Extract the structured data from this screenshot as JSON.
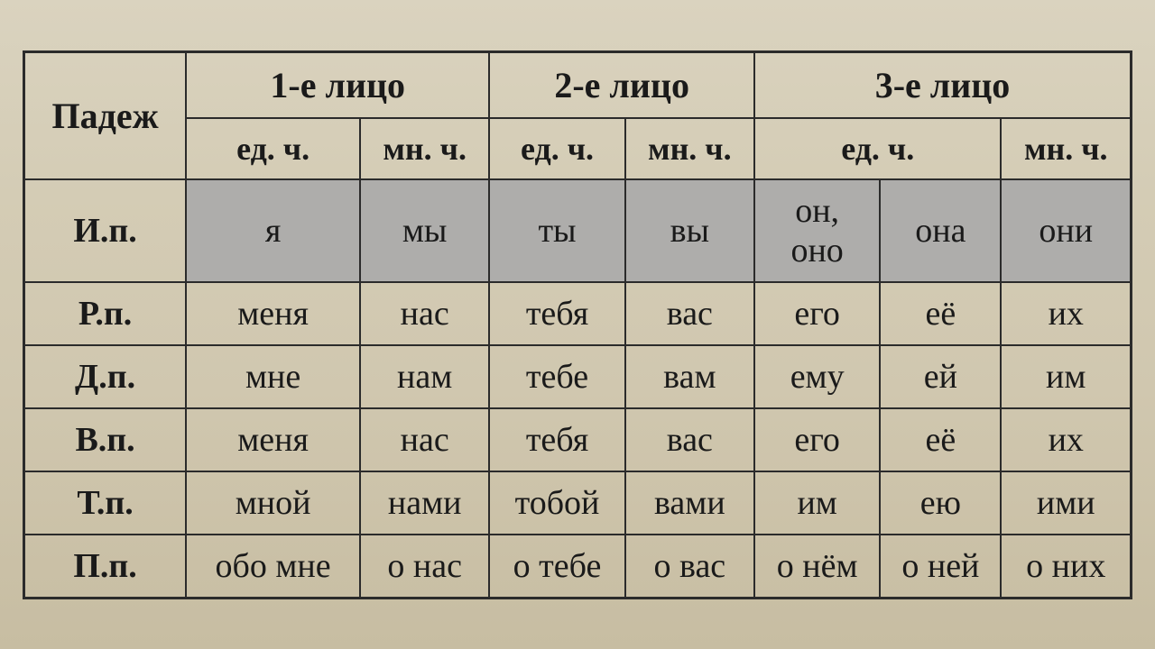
{
  "table": {
    "headers": {
      "case": "Падеж",
      "person1": "1-е лицо",
      "person2": "2-е лицо",
      "person3": "3-е лицо",
      "singular": "ед. ч.",
      "plural": "мн. ч."
    },
    "rows": [
      {
        "case": "И.п.",
        "shaded": true,
        "cells": [
          "я",
          "мы",
          "ты",
          "вы",
          "он, оно",
          "она",
          "они"
        ]
      },
      {
        "case": "Р.п.",
        "shaded": false,
        "cells": [
          "меня",
          "нас",
          "тебя",
          "вас",
          "его",
          "её",
          "их"
        ]
      },
      {
        "case": "Д.п.",
        "shaded": false,
        "cells": [
          "мне",
          "нам",
          "тебе",
          "вам",
          "ему",
          "ей",
          "им"
        ]
      },
      {
        "case": "В.п.",
        "shaded": false,
        "cells": [
          "меня",
          "нас",
          "тебя",
          "вас",
          "его",
          "её",
          "их"
        ]
      },
      {
        "case": "Т.п.",
        "shaded": false,
        "cells": [
          "мной",
          "нами",
          "тобой",
          "вами",
          "им",
          "ею",
          "ими"
        ]
      },
      {
        "case": "П.п.",
        "shaded": false,
        "cells": [
          "обо мне",
          "о нас",
          "о тебе",
          "о вас",
          "о нём",
          "о ней",
          "о них"
        ]
      }
    ],
    "styling": {
      "border_color": "#2b2b2b",
      "text_color": "#1a1a1a",
      "shaded_bg": "#aeadab",
      "body_bg_gradient": [
        "#dad3bf",
        "#c7bda2"
      ],
      "font_family": "Georgia, serif",
      "header_fontsize": 40,
      "subheader_fontsize": 36,
      "cell_fontsize": 38,
      "case_fontsize": 38,
      "border_width_outer": 3,
      "border_width_inner": 2
    }
  }
}
